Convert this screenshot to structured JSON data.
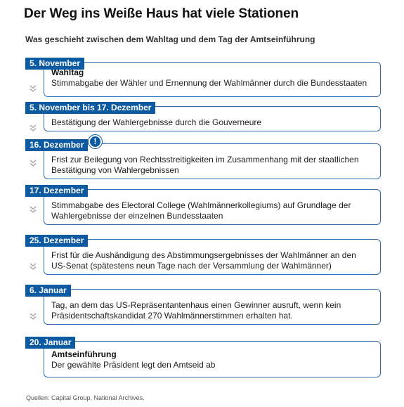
{
  "title": "Der Weg ins Weiße Haus hat viele Stationen",
  "subtitle": "Was geschieht zwischen dem Wahltag und dem Tag der Amtseinführung",
  "stations": [
    {
      "date": "5. November",
      "heading": "Wahltag",
      "lines": [
        "Stimmabgabe der Wähler und Ernennung der Wahlmänner durch die Bundesstaaten"
      ],
      "has_chevron": true,
      "has_alert": false
    },
    {
      "date": "5. November bis 17. Dezember",
      "heading": "",
      "lines": [
        "Bestätigung der Wahlergebnisse durch die Gouverneure"
      ],
      "has_chevron": true,
      "has_alert": false
    },
    {
      "date": "16. Dezember",
      "heading": "",
      "lines": [
        "Frist zur Beilegung von Rechtsstreitigkeiten im Zusammenhang mit der staatlichen",
        "Bestätigung von Wahlergebnissen"
      ],
      "has_chevron": true,
      "has_alert": true
    },
    {
      "date": "17. Dezember",
      "heading": "",
      "lines": [
        "Stimmabgabe des Electoral College (Wahlmännerkollegiums) auf Grundlage der",
        "Wahlergebnisse der einzelnen Bundesstaaten"
      ],
      "has_chevron": true,
      "has_alert": false
    },
    {
      "date": "25. Dezember",
      "heading": "",
      "lines": [
        "Frist für die Aushändigung des Abstimmungsergebnisses der Wahlmänner an den",
        "US-Senat (spätestens neun Tage nach der Versammlung der Wahlmänner)"
      ],
      "has_chevron": true,
      "has_alert": false
    },
    {
      "date": "6. Januar",
      "heading": "",
      "lines": [
        "Tag, an dem das US-Repräsentantenhaus einen Gewinner ausruft, wenn kein",
        "Präsidentschaftskandidat 270 Wahlmännerstimmen erhalten hat."
      ],
      "has_chevron": true,
      "has_alert": false
    },
    {
      "date": "20. Januar",
      "heading": "Amtseinführung",
      "lines": [
        "Der gewählte Präsident legt den Amtseid ab"
      ],
      "has_chevron": false,
      "has_alert": false
    }
  ],
  "alert_symbol": "!",
  "source": "Quellen: Capital Group, National Archives.",
  "colors": {
    "accent": "#0b5aa2",
    "border": "#2f6db3",
    "chevron": "#9a9a9a"
  },
  "icons": {
    "chevron": "double-chevron-down-icon",
    "alert": "exclamation-circle-icon"
  }
}
